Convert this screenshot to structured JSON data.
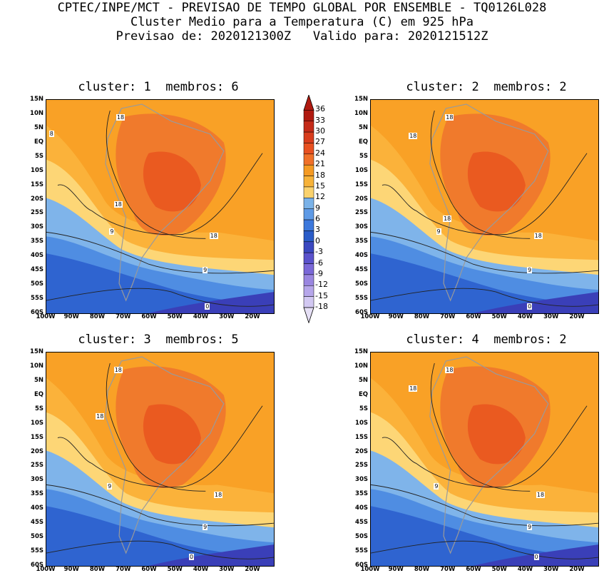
{
  "header": {
    "line1": "CPTEC/INPE/MCT - PREVISAO DE TEMPO GLOBAL POR ENSEMBLE - TQ0126L028",
    "line2": "Cluster Medio para a Temperatura (C) em 925 hPa",
    "line3": "Previsao de: 2020121300Z   Valido para: 2020121512Z"
  },
  "panels": [
    {
      "title": "cluster: 1  membros: 6",
      "labels": [
        "18",
        "8",
        "18",
        "9",
        "18",
        "9",
        "0"
      ]
    },
    {
      "title": "cluster: 2  membros: 2",
      "labels": [
        "18",
        "18",
        "18",
        "9",
        "18",
        "9",
        "0"
      ]
    },
    {
      "title": "cluster: 3  membros: 5",
      "labels": [
        "18",
        "18",
        "9",
        "18",
        "9",
        "0"
      ]
    },
    {
      "title": "cluster: 4  membros: 2",
      "labels": [
        "18",
        "18",
        "9",
        "18",
        "9",
        "0"
      ]
    }
  ],
  "lat_ticks": [
    "15N",
    "10N",
    "5N",
    "EQ",
    "5S",
    "10S",
    "15S",
    "20S",
    "25S",
    "30S",
    "35S",
    "40S",
    "45S",
    "50S",
    "55S",
    "60S"
  ],
  "lon_ticks": [
    "100W",
    "90W",
    "80W",
    "70W",
    "60W",
    "50W",
    "40W",
    "30W",
    "20W"
  ],
  "colorbar": {
    "labels": [
      "36",
      "33",
      "30",
      "27",
      "24",
      "21",
      "18",
      "15",
      "12",
      "9",
      "6",
      "3",
      "0",
      "-3",
      "-6",
      "-9",
      "-12",
      "-15",
      "-18"
    ],
    "colors": [
      "#b01a10",
      "#c42a18",
      "#d83c1c",
      "#e85020",
      "#f07028",
      "#f59a22",
      "#f7b238",
      "#fad26e",
      "#7ab2e8",
      "#5e9ae6",
      "#3c78dc",
      "#2a5cc8",
      "#3a48c0",
      "#5a52cc",
      "#7a68d8",
      "#9a86e0",
      "#b6a6ea",
      "#d2c8f2"
    ]
  }
}
